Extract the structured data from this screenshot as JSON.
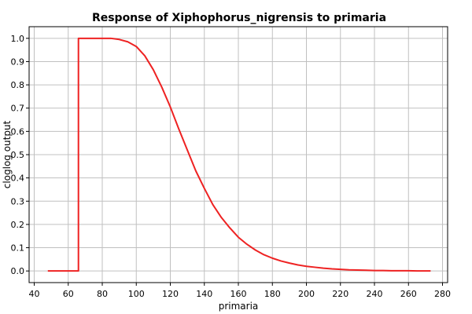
{
  "chart_data": {
    "type": "line",
    "title": "Response of Xiphophorus_nigrensis to primaria",
    "xlabel": "primaria",
    "ylabel": "cloglog output",
    "xlim": [
      37,
      283
    ],
    "ylim": [
      -0.05,
      1.05
    ],
    "xticks": [
      40,
      60,
      80,
      100,
      120,
      140,
      160,
      180,
      200,
      220,
      240,
      260,
      280
    ],
    "yticks": [
      0.0,
      0.1,
      0.2,
      0.3,
      0.4,
      0.5,
      0.6,
      0.7,
      0.8,
      0.9,
      1.0
    ],
    "xtick_labels": [
      "40",
      "60",
      "80",
      "100",
      "120",
      "140",
      "160",
      "180",
      "200",
      "220",
      "240",
      "260",
      "280"
    ],
    "ytick_labels": [
      "0.0",
      "0.1",
      "0.2",
      "0.3",
      "0.4",
      "0.5",
      "0.6",
      "0.7",
      "0.8",
      "0.9",
      "1.0"
    ],
    "grid": true,
    "series": [
      {
        "color": "#ee2222",
        "x": [
          48,
          66,
          66,
          70,
          80,
          85,
          90,
          95,
          100,
          105,
          110,
          115,
          120,
          125,
          130,
          135,
          140,
          145,
          150,
          155,
          160,
          165,
          170,
          175,
          180,
          185,
          190,
          195,
          200,
          205,
          210,
          215,
          220,
          225,
          230,
          235,
          240,
          245,
          250,
          255,
          260,
          265,
          273
        ],
        "y": [
          0.0,
          0.0,
          1.0,
          1.0,
          1.0,
          1.0,
          0.995,
          0.985,
          0.965,
          0.925,
          0.865,
          0.79,
          0.705,
          0.61,
          0.52,
          0.43,
          0.355,
          0.285,
          0.23,
          0.185,
          0.145,
          0.115,
          0.09,
          0.07,
          0.055,
          0.043,
          0.034,
          0.026,
          0.02,
          0.016,
          0.012,
          0.009,
          0.007,
          0.005,
          0.004,
          0.003,
          0.002,
          0.002,
          0.001,
          0.001,
          0.001,
          0.0,
          0.0
        ]
      }
    ]
  }
}
